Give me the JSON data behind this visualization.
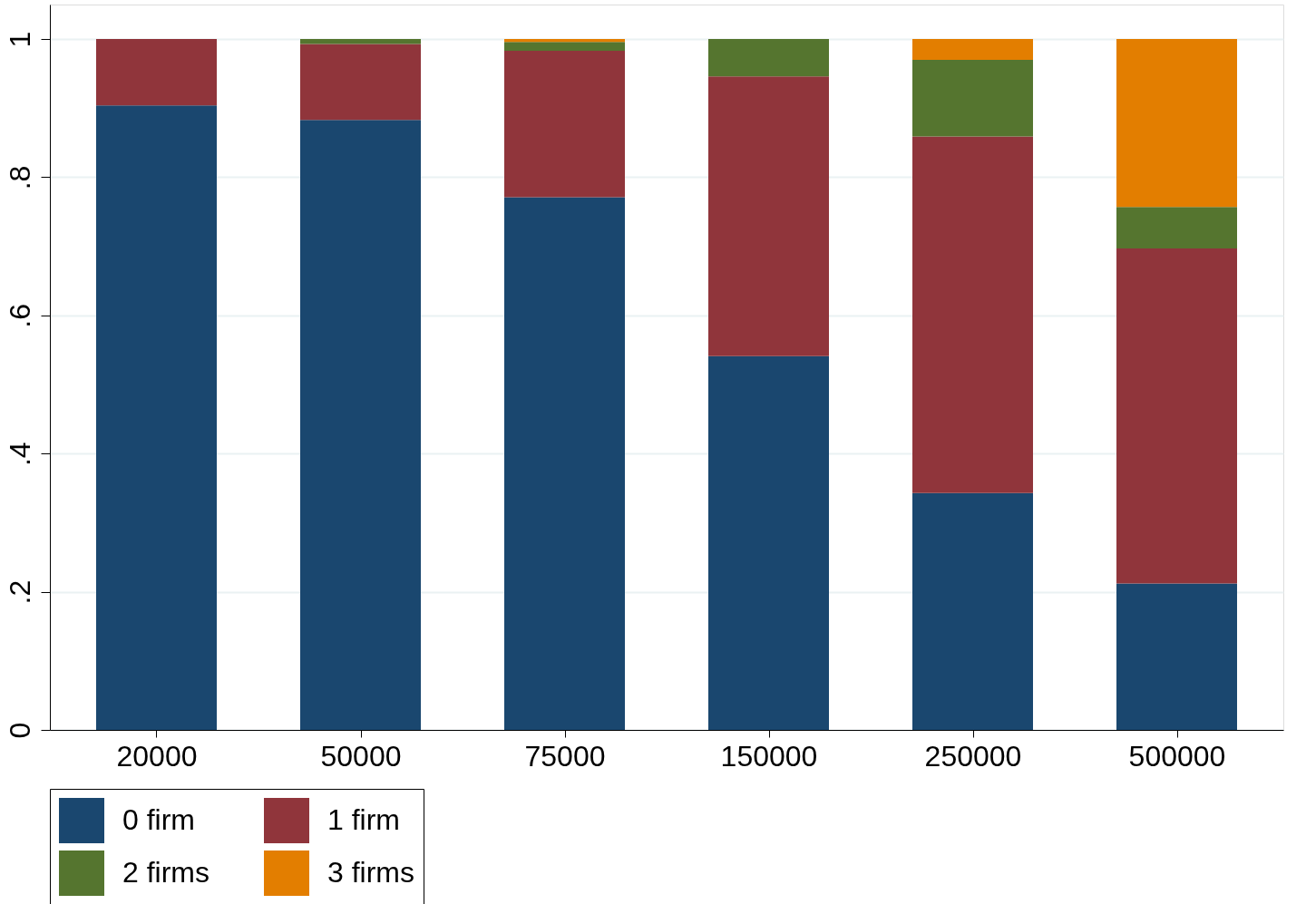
{
  "chart_data": {
    "type": "bar",
    "stacked": true,
    "categories": [
      "20000",
      "50000",
      "75000",
      "150000",
      "250000",
      "500000"
    ],
    "series": [
      {
        "name": "0 firm",
        "color": "#1a476f",
        "values": [
          0.904,
          0.883,
          0.771,
          0.541,
          0.343,
          0.212
        ]
      },
      {
        "name": "1 firm",
        "color": "#90353b",
        "values": [
          0.096,
          0.11,
          0.212,
          0.405,
          0.516,
          0.485
        ]
      },
      {
        "name": "2 firms",
        "color": "#55752f",
        "values": [
          null,
          0.007,
          0.013,
          0.054,
          0.111,
          0.06
        ]
      },
      {
        "name": "3 firms",
        "color": "#e37e00",
        "values": [
          null,
          null,
          0.004,
          null,
          0.03,
          0.243
        ]
      }
    ],
    "ylim": [
      0,
      1.05
    ],
    "yticks": [
      {
        "value": 0,
        "label": "0"
      },
      {
        "value": 0.2,
        "label": ".2"
      },
      {
        "value": 0.4,
        "label": ".4"
      },
      {
        "value": 0.6,
        "label": ".6"
      },
      {
        "value": 0.8,
        "label": ".8"
      },
      {
        "value": 1,
        "label": "1"
      }
    ],
    "grid": "y",
    "legend": "bottom"
  }
}
